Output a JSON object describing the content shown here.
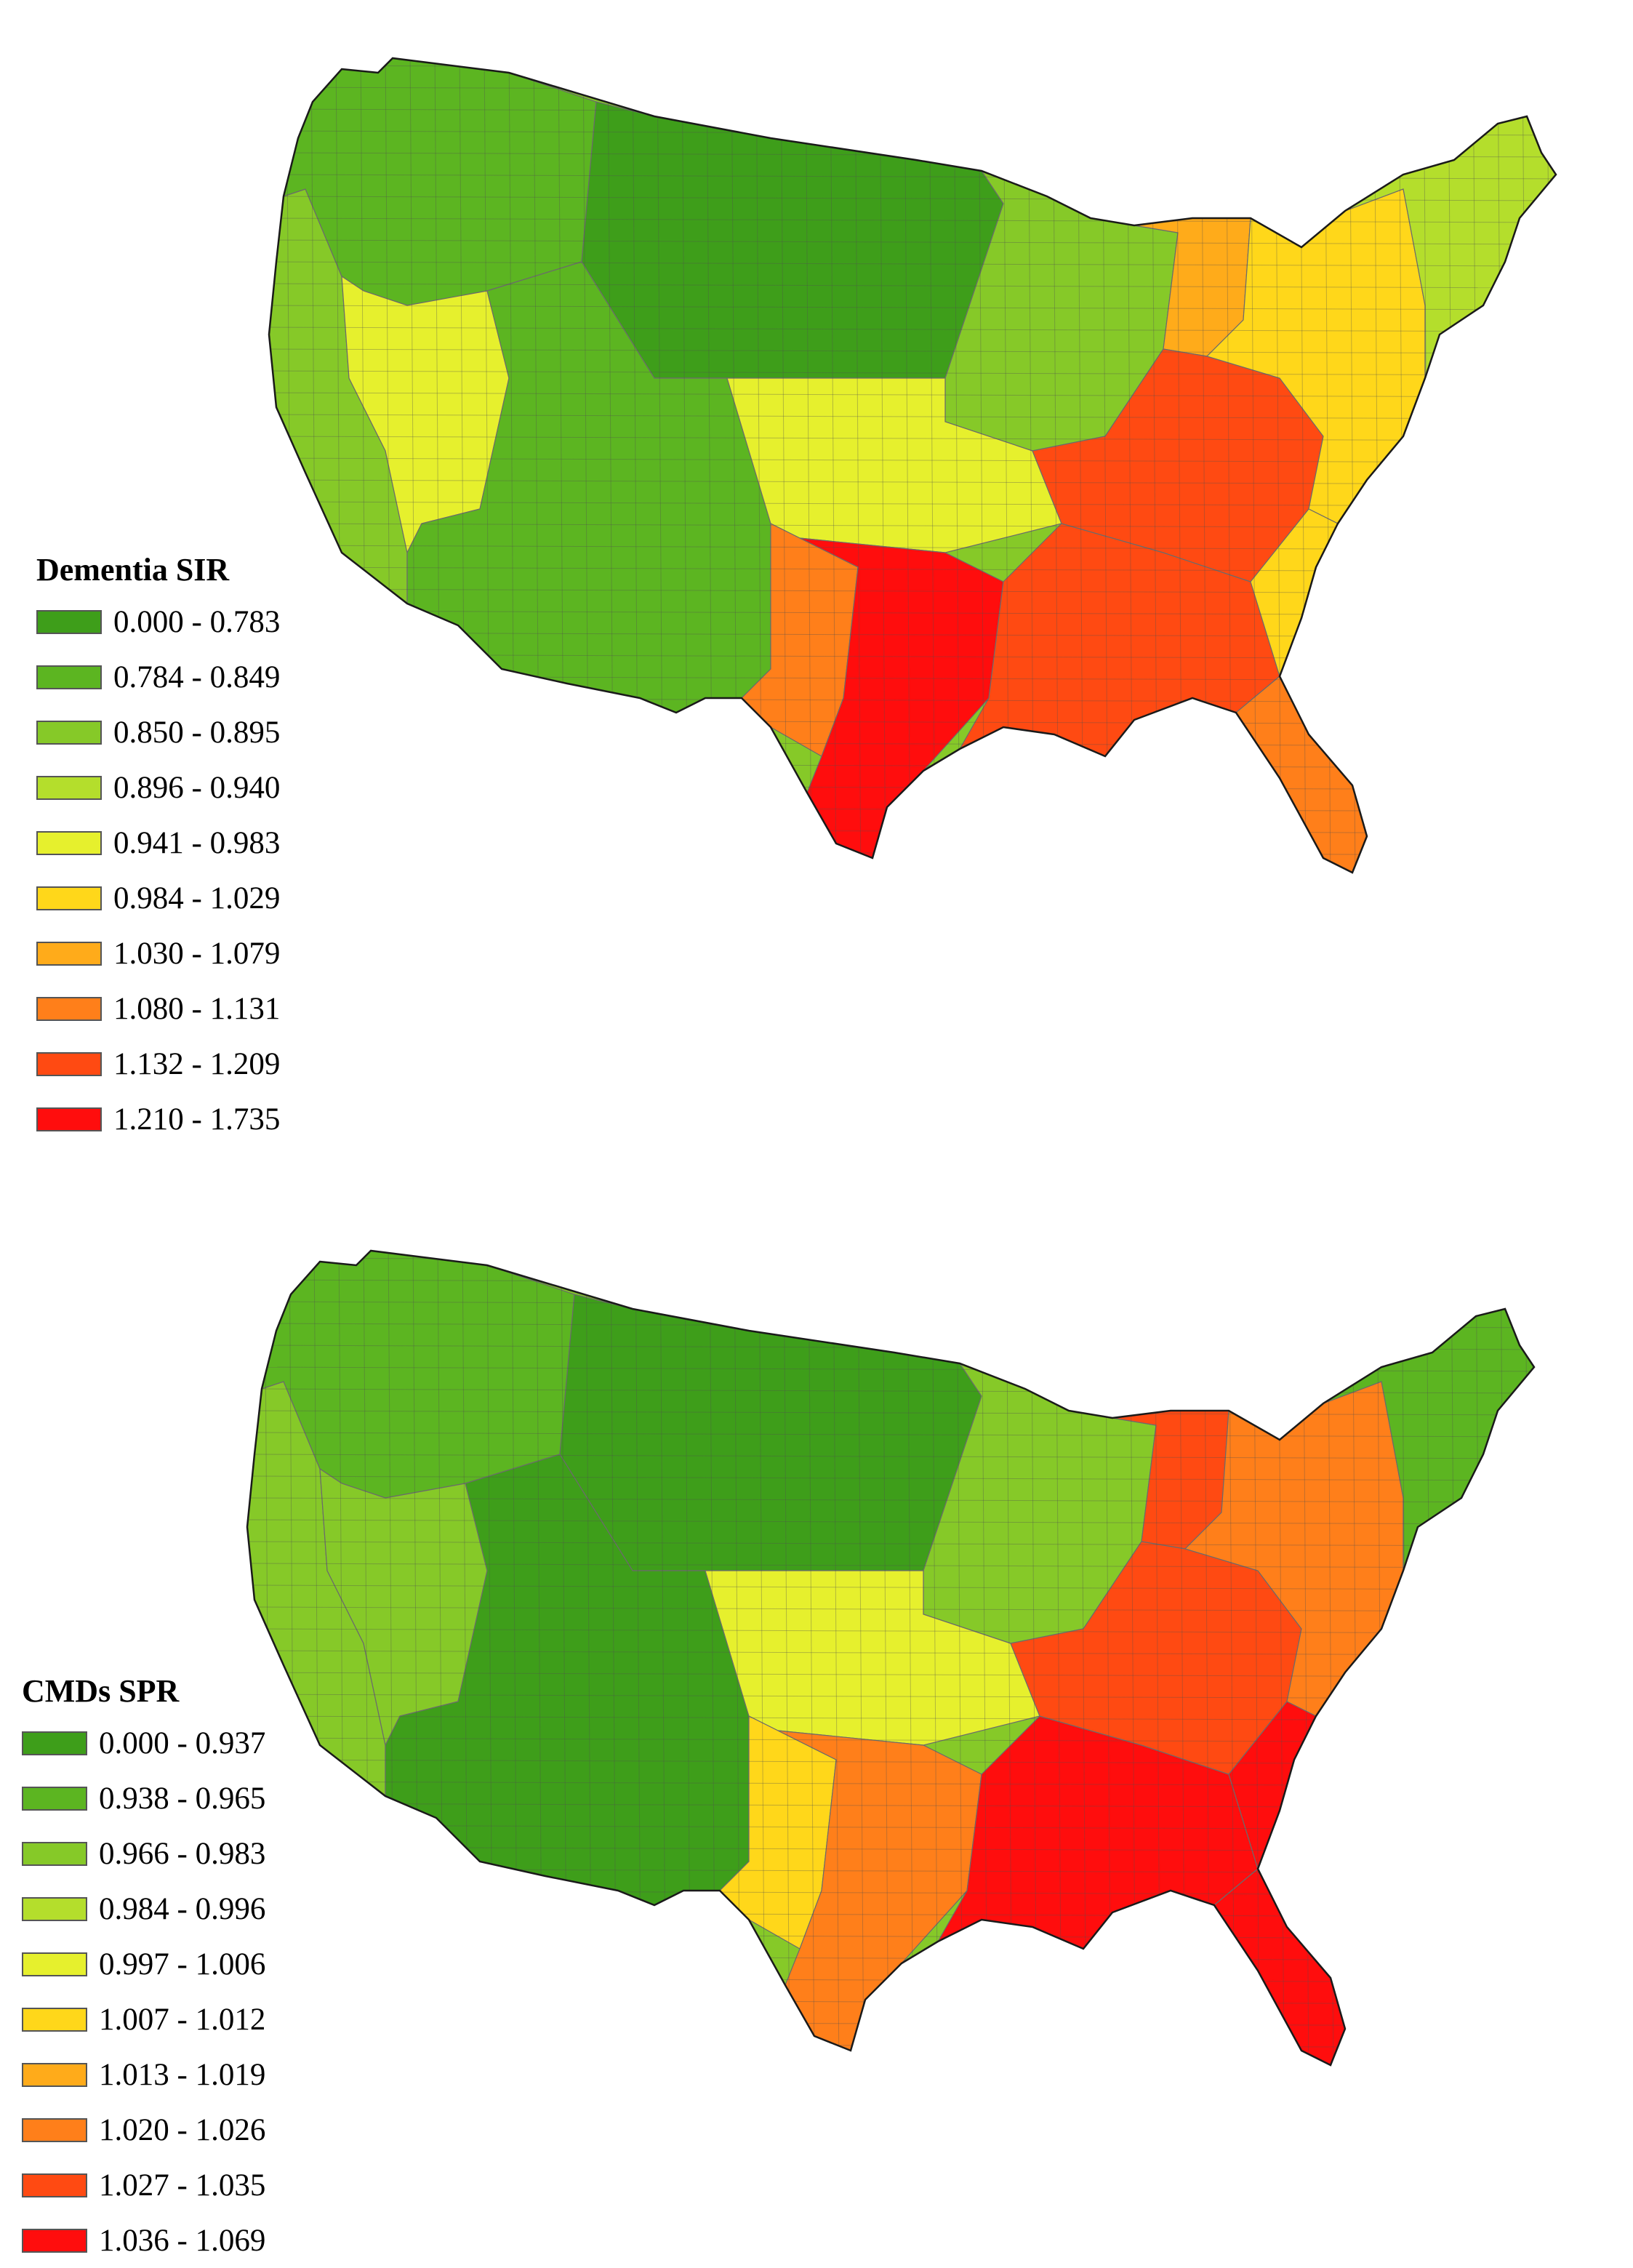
{
  "maps": [
    {
      "legend_title": "Dementia SIR",
      "legend": [
        {
          "label": "0.000 - 0.783",
          "color": "#3e9e1a"
        },
        {
          "label": "0.784 - 0.849",
          "color": "#5cb521"
        },
        {
          "label": "0.850 - 0.895",
          "color": "#86c928"
        },
        {
          "label": "0.896 - 0.940",
          "color": "#b4de2c"
        },
        {
          "label": "0.941 - 0.983",
          "color": "#e6f02d"
        },
        {
          "label": "0.984 - 1.029",
          "color": "#ffd71a"
        },
        {
          "label": "1.030 - 1.079",
          "color": "#ffab1a"
        },
        {
          "label": "1.080 - 1.131",
          "color": "#ff7f1a"
        },
        {
          "label": "1.132 - 1.209",
          "color": "#ff4a12"
        },
        {
          "label": "1.210 - 1.735",
          "color": "#ff0d0d"
        }
      ],
      "region_levels": {
        "west-coast": 2,
        "northwest": 1,
        "northern-plains": 0,
        "southwest": 1,
        "nevada-band": 4,
        "midwest-north": 2,
        "midwest-south": 4,
        "texas-west": 7,
        "texas-east": 9,
        "deep-south": 8,
        "appalachia": 8,
        "southeast-coast": 5,
        "florida": 7,
        "mid-atlantic": 5,
        "new-england": 3,
        "michigan": 6
      }
    },
    {
      "legend_title": "CMDs SPR",
      "legend": [
        {
          "label": "0.000 - 0.937",
          "color": "#3e9e1a"
        },
        {
          "label": "0.938 - 0.965",
          "color": "#5cb521"
        },
        {
          "label": "0.966 - 0.983",
          "color": "#86c928"
        },
        {
          "label": "0.984 - 0.996",
          "color": "#b4de2c"
        },
        {
          "label": "0.997 - 1.006",
          "color": "#e6f02d"
        },
        {
          "label": "1.007 - 1.012",
          "color": "#ffd71a"
        },
        {
          "label": "1.013 - 1.019",
          "color": "#ffab1a"
        },
        {
          "label": "1.020 - 1.026",
          "color": "#ff7f1a"
        },
        {
          "label": "1.027 - 1.035",
          "color": "#ff4a12"
        },
        {
          "label": "1.036 - 1.069",
          "color": "#ff0d0d"
        }
      ],
      "region_levels": {
        "west-coast": 2,
        "northwest": 1,
        "northern-plains": 0,
        "southwest": 0,
        "nevada-band": 2,
        "midwest-north": 2,
        "midwest-south": 4,
        "texas-west": 5,
        "texas-east": 7,
        "deep-south": 9,
        "appalachia": 8,
        "southeast-coast": 9,
        "florida": 9,
        "mid-atlantic": 7,
        "new-england": 1,
        "michigan": 8
      }
    }
  ]
}
